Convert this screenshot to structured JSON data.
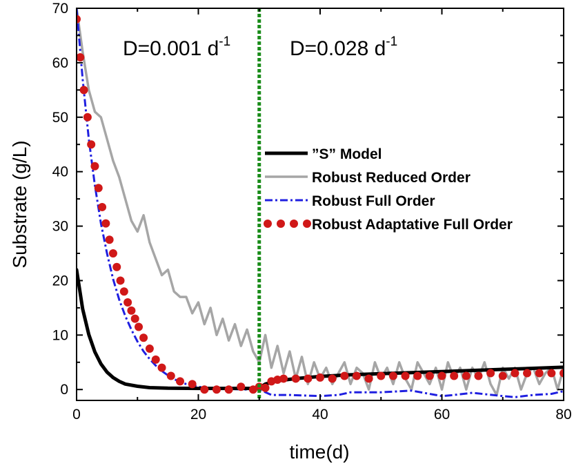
{
  "chart_data": {
    "type": "line",
    "title": "",
    "xlabel": "time(d)",
    "ylabel": "Substrate (g/L)",
    "xlim": [
      0,
      80
    ],
    "ylim": [
      -2,
      70
    ],
    "x_ticks": [
      0,
      20,
      40,
      60,
      80
    ],
    "y_ticks": [
      0,
      10,
      20,
      30,
      40,
      50,
      60,
      70
    ],
    "grid": false,
    "legend_position": "center-right",
    "annotations": [
      {
        "text": "D=0.001 d",
        "superscript": "-1",
        "x": 10
      },
      {
        "text": "D=0.028 d",
        "superscript": "-1",
        "x": 42
      }
    ],
    "vertical_marker": {
      "x": 30,
      "color": "#1a8c1a",
      "style": "dotted"
    },
    "series": [
      {
        "name": "”S” Model",
        "style": "solid-thick",
        "color": "#000000",
        "x": [
          0,
          1,
          2,
          3,
          4,
          5,
          6,
          7,
          8,
          10,
          12,
          15,
          20,
          25,
          29.5,
          30,
          31,
          33,
          36,
          40,
          45,
          50,
          55,
          60,
          65,
          70,
          75,
          80
        ],
        "values": [
          22,
          14.8,
          10.1,
          6.9,
          4.7,
          3.2,
          2.2,
          1.5,
          1.0,
          0.6,
          0.35,
          0.25,
          0.2,
          0.2,
          0.2,
          0.3,
          1.0,
          1.6,
          2.0,
          2.4,
          2.7,
          2.9,
          3.1,
          3.3,
          3.5,
          3.7,
          3.9,
          4.1
        ]
      },
      {
        "name": "Robust Reduced Order",
        "style": "solid-gray",
        "color": "#a6a6a6",
        "x": [
          0,
          1,
          2,
          3,
          4,
          5,
          6,
          7,
          8,
          9,
          10,
          11,
          12,
          13,
          14,
          15,
          16,
          17,
          18,
          19,
          20,
          21,
          22,
          23,
          24,
          25,
          26,
          27,
          28,
          29,
          30,
          31,
          32,
          33,
          34,
          35,
          36,
          37,
          38,
          39,
          40,
          41,
          42,
          43,
          44,
          45,
          46,
          47,
          48,
          49,
          50,
          51,
          52,
          53,
          54,
          55,
          56,
          57,
          58,
          59,
          60,
          61,
          62,
          63,
          64,
          65,
          66,
          67,
          68,
          69,
          70,
          71,
          72,
          73,
          74,
          75,
          76,
          77,
          78,
          79,
          80
        ],
        "values": [
          70,
          62,
          55,
          51,
          50,
          46,
          42,
          39,
          35,
          31,
          29,
          32,
          27,
          24,
          21,
          22,
          18,
          17,
          17,
          14,
          16,
          12,
          15,
          10,
          13,
          9,
          12,
          8,
          11,
          7,
          5,
          10,
          4,
          8,
          3,
          7,
          2,
          6,
          1,
          5,
          2,
          4,
          1,
          3,
          5,
          1,
          4,
          3,
          0,
          5,
          2,
          4,
          1,
          5,
          2,
          0,
          5,
          3,
          1,
          4,
          0,
          5,
          2,
          4,
          0,
          4,
          2,
          5,
          1,
          -1,
          4,
          2,
          4,
          0,
          3,
          4,
          1,
          3,
          4,
          0,
          4
        ]
      },
      {
        "name": "Robust Full Order",
        "style": "dash-dot-blue",
        "color": "#1f1fe0",
        "x": [
          0,
          1,
          2,
          3,
          4,
          5,
          6,
          7,
          8,
          9,
          10,
          11,
          12,
          13,
          14,
          15,
          16,
          17,
          18,
          20,
          22,
          25,
          28,
          30,
          32,
          35,
          40,
          43,
          45,
          50,
          55,
          60,
          62,
          65,
          70,
          72,
          75,
          78,
          80
        ],
        "values": [
          70,
          57,
          46,
          37.5,
          30.5,
          25,
          20.3,
          16.5,
          13.5,
          11,
          8.8,
          7,
          5.6,
          4.4,
          3.4,
          2.6,
          1.9,
          1.4,
          1,
          0.5,
          0.2,
          0.1,
          0,
          0,
          -1,
          -1,
          -1.2,
          -1,
          -0.5,
          -0.5,
          -0.2,
          -1.2,
          -1,
          -0.6,
          -1.2,
          -1.4,
          -1,
          -0.8,
          -0.3
        ]
      },
      {
        "name": "Robust Adaptative Full Order",
        "style": "dots-red",
        "color": "#d01818",
        "x": [
          0,
          0.6,
          1.2,
          1.8,
          2.4,
          3,
          3.6,
          4.2,
          4.8,
          5.4,
          6,
          6.6,
          7.2,
          7.8,
          8.4,
          9,
          9.6,
          10.2,
          11,
          12,
          13,
          14,
          15.5,
          17,
          19,
          21,
          23,
          25,
          27,
          29,
          30,
          31,
          32,
          33,
          34,
          36,
          38,
          40,
          42,
          44,
          46,
          48,
          50,
          52,
          54,
          56,
          58,
          60,
          62,
          64,
          66,
          68,
          70,
          72,
          74,
          76,
          78,
          80
        ],
        "values": [
          68,
          61,
          55,
          50,
          45,
          41,
          37,
          33.5,
          30.5,
          27.5,
          25,
          22.5,
          20,
          18,
          16,
          14.5,
          13,
          11.5,
          9.5,
          7.5,
          5.5,
          4,
          2.5,
          1.5,
          1,
          0,
          0,
          0,
          0.5,
          0,
          0.5,
          0.3,
          1.5,
          1.8,
          2,
          2,
          2,
          2.2,
          2,
          2.5,
          2.5,
          2,
          2.5,
          2.5,
          2.5,
          2.5,
          2.5,
          2.5,
          2.5,
          2.5,
          2.5,
          3,
          2.5,
          3,
          3,
          3,
          3,
          3
        ]
      }
    ]
  }
}
